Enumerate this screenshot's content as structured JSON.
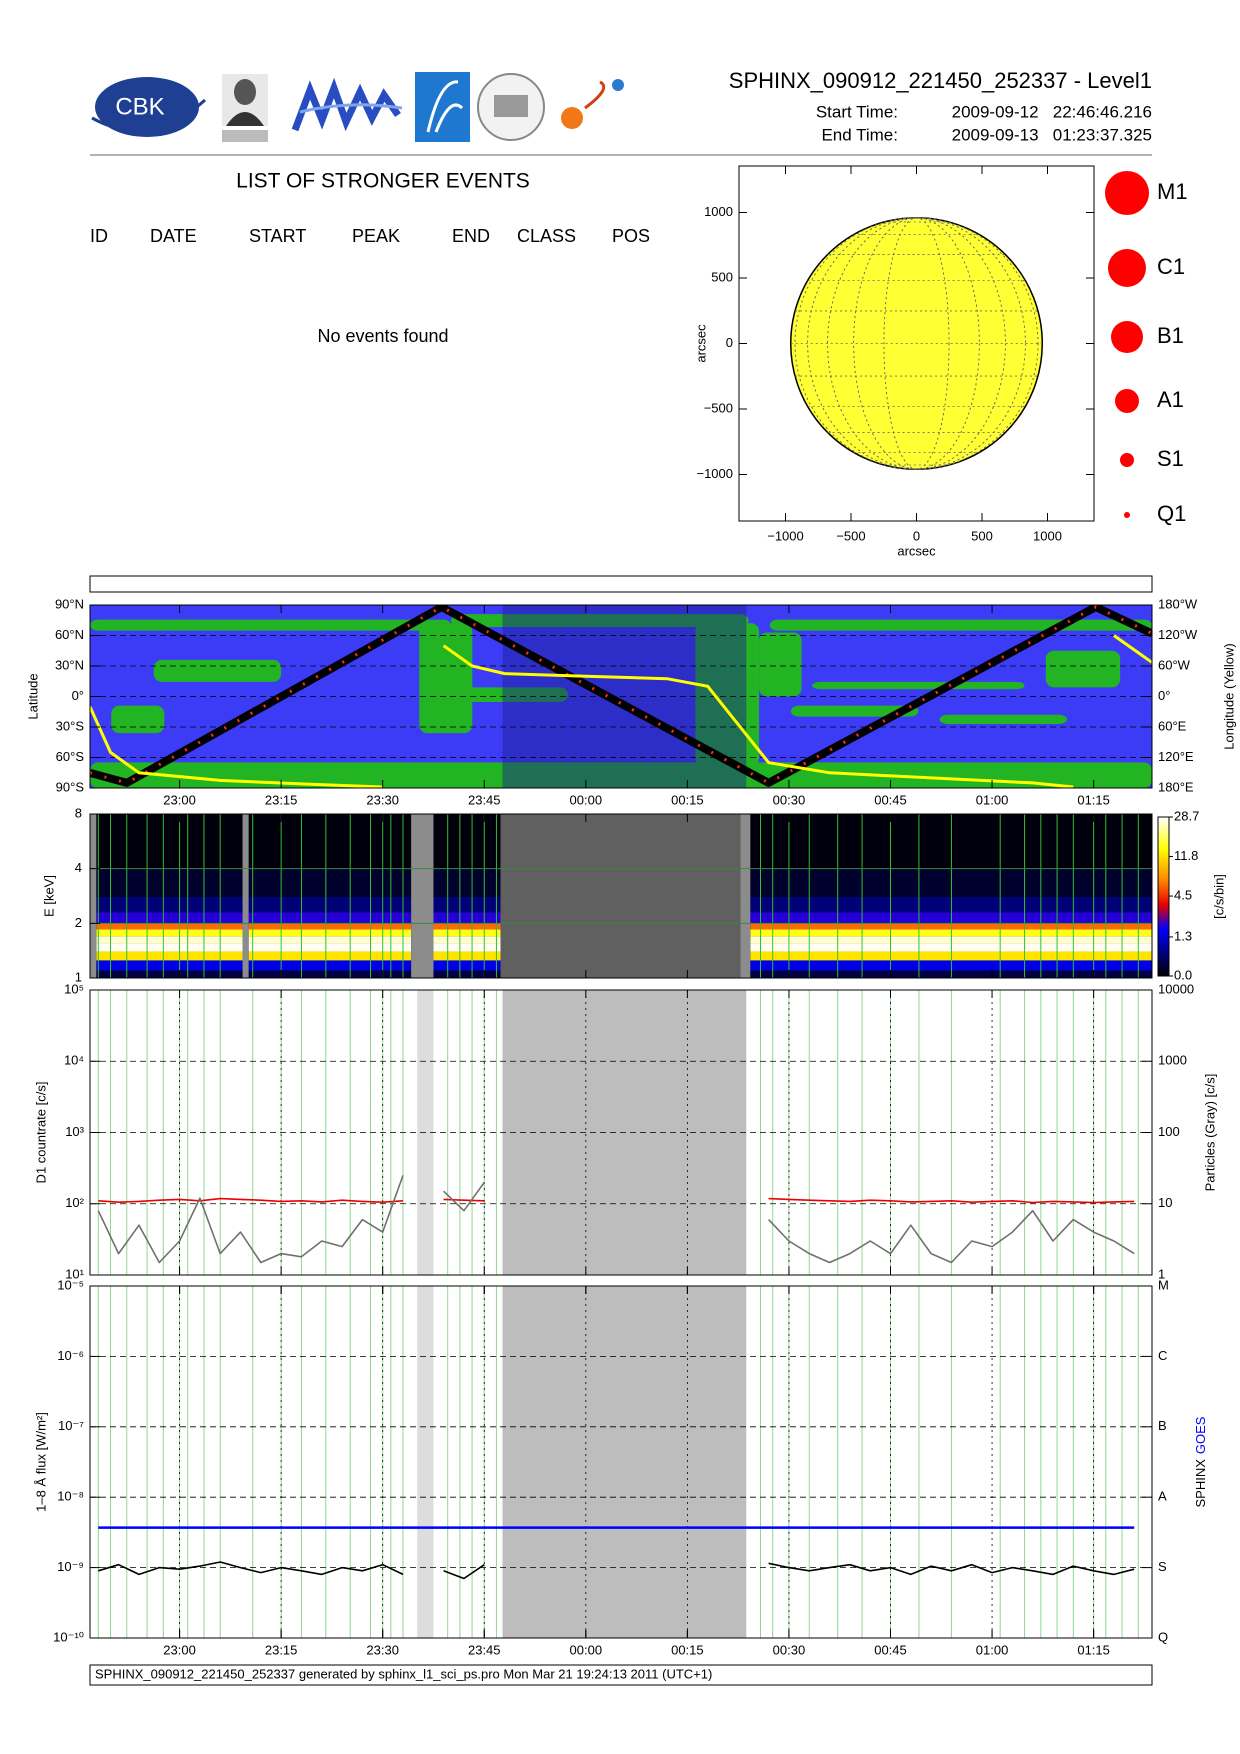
{
  "header": {
    "logo_text": "CBK",
    "title": "SPHINX_090912_221450_252337 - Level1",
    "start_label": "Start Time:",
    "start_value": "2009-09-12   22:46:46.216",
    "end_label": "End Time:",
    "end_value": "2009-09-13   01:23:37.325"
  },
  "events": {
    "title": "LIST OF STRONGER EVENTS",
    "columns": [
      "ID",
      "DATE",
      "START",
      "PEAK",
      "END",
      "CLASS",
      "POS"
    ],
    "message": "No events found"
  },
  "chart_data": [
    {
      "type": "disk",
      "xlabel": "arcsec",
      "ylabel": "arcsec",
      "xlim": [
        -1355,
        1355
      ],
      "ylim": [
        -1355,
        1355
      ],
      "xticks": [
        {
          "value": -1000,
          "label": "−1000"
        },
        {
          "value": -500,
          "label": "−500"
        },
        0,
        500,
        1000
      ],
      "yticks": [
        {
          "value": -1000,
          "label": "−1000"
        },
        {
          "value": -500,
          "label": "−500"
        },
        0,
        500,
        1000
      ],
      "sun_radius": 960,
      "sun_color": "#ffff33",
      "marker_color": "#ff0000",
      "classes": [
        "M1",
        "C1",
        "B1",
        "A1",
        "S1",
        "Q1"
      ]
    },
    {
      "type": "map",
      "ylabel": "Latitude",
      "y2label": "Longitude (Yellow)",
      "xlim": [
        22.7795,
        25.3937
      ],
      "xticks": [
        {
          "value": 23,
          "label": "23:00"
        },
        {
          "value": 23.25,
          "label": "23:15"
        },
        {
          "value": 23.5,
          "label": "23:30"
        },
        {
          "value": 23.75,
          "label": "23:45"
        },
        {
          "value": 24,
          "label": "00:00"
        },
        {
          "value": 24.25,
          "label": "00:15"
        },
        {
          "value": 24.5,
          "label": "00:30"
        },
        {
          "value": 24.75,
          "label": "00:45"
        },
        {
          "value": 25,
          "label": "01:00"
        },
        {
          "value": 25.25,
          "label": "01:15"
        }
      ],
      "ylim": [
        -90,
        90
      ],
      "yticks": [
        {
          "value": -90,
          "label": "90°S"
        },
        {
          "value": -60,
          "label": "60°S"
        },
        {
          "value": -30,
          "label": "30°S"
        },
        {
          "value": 0,
          "label": "0°"
        },
        {
          "value": 30,
          "label": "30°N"
        },
        {
          "value": 60,
          "label": "60°N"
        },
        {
          "value": 90,
          "label": "90°N"
        }
      ],
      "y2lim": [
        180,
        -180
      ],
      "y2ticks": [
        {
          "value": -180,
          "label": "180°W"
        },
        {
          "value": -120,
          "label": "120°W"
        },
        {
          "value": -60,
          "label": "60°W"
        },
        {
          "value": 0,
          "label": "0°"
        },
        {
          "value": 60,
          "label": "60°E"
        },
        {
          "value": 120,
          "label": "120°E"
        },
        {
          "value": 180,
          "label": "180°E"
        }
      ],
      "series": [
        {
          "color": "#000000",
          "x": [
            22.7795,
            22.87,
            23.645,
            24.45,
            25.255,
            25.3937
          ],
          "values": [
            -75,
            -85,
            88,
            -85,
            88,
            62
          ]
        },
        {
          "color": "#ffff00",
          "axis": "y2",
          "x": [
            22.7795,
            22.83,
            22.9,
            23.1,
            23.3,
            23.5,
            23.55,
            23.65,
            23.72,
            23.8,
            24.0,
            24.2,
            24.3,
            24.38,
            24.45,
            24.6,
            24.9,
            25.1,
            25.2,
            25.25,
            25.3,
            25.3937
          ],
          "values": [
            20,
            110,
            150,
            165,
            172,
            178,
            null,
            -100,
            -60,
            -45,
            -40,
            -35,
            -20,
            60,
            130,
            150,
            162,
            170,
            178,
            null,
            -120,
            -67
          ]
        }
      ]
    },
    {
      "type": "heatmap",
      "ylabel": "E [keV]",
      "colorbar_label": "[c/s/bin]",
      "log_y": true,
      "xlim": [
        22.7795,
        25.3937
      ],
      "ylim": [
        1,
        8
      ],
      "yticks": [
        1,
        2,
        4,
        8
      ],
      "clim": [
        0,
        28.7
      ],
      "cticks": [
        {
          "value": 0,
          "label": "0.0"
        },
        1.3,
        4.5,
        11.8,
        28.7
      ],
      "intervals": [
        [
          22.795,
          23.155
        ],
        [
          23.17,
          23.57
        ],
        [
          23.625,
          23.79
        ],
        [
          24.405,
          25.3937
        ]
      ],
      "gaps": [
        [
          22.7795,
          22.795
        ],
        [
          23.155,
          23.17
        ],
        [
          23.57,
          23.625
        ],
        [
          24.38,
          24.405
        ]
      ],
      "eclipse": [
        23.79,
        24.38
      ],
      "energy": [
        1,
        1.1,
        1.25,
        1.4,
        1.55,
        1.7,
        1.85,
        2.0,
        2.3,
        2.8,
        4,
        8
      ],
      "counts": [
        0.3,
        1.5,
        12,
        28,
        25,
        15,
        6,
        2,
        0.6,
        0.2,
        0.05
      ]
    },
    {
      "type": "line",
      "ylabel": "D1 countrate [c/s]",
      "y2label": "Particles (Gray) [c/s]",
      "log_y": true,
      "xlim": [
        22.7795,
        25.3937
      ],
      "ylim": [
        10,
        100000
      ],
      "yticks": [
        {
          "value": 10,
          "label": "10¹"
        },
        {
          "value": 100,
          "label": "10²"
        },
        {
          "value": 1000,
          "label": "10³"
        },
        {
          "value": 10000,
          "label": "10⁴"
        },
        {
          "value": 100000,
          "label": "10⁵"
        }
      ],
      "y2lim": [
        1,
        10000
      ],
      "y2ticks": [
        1,
        10,
        100,
        1000,
        10000
      ],
      "gaps": [
        [
          23.585,
          23.625
        ]
      ],
      "eclipse": [
        23.795,
        24.395
      ],
      "flags": [
        22.8,
        22.83,
        22.87,
        22.92,
        22.96,
        23.0,
        23.02,
        23.06,
        23.1,
        23.18,
        23.25,
        23.3,
        23.36,
        23.42,
        23.47,
        23.5,
        23.52,
        23.55,
        23.66,
        23.69,
        23.72,
        23.75,
        23.78,
        24.43,
        24.46,
        24.5,
        24.55,
        24.62,
        24.68,
        24.75,
        24.82,
        24.9,
        25.02,
        25.08,
        25.12,
        25.16,
        25.2,
        25.25,
        25.28,
        25.32,
        25.36
      ],
      "x": [
        22.8,
        22.85,
        22.9,
        22.95,
        23,
        23.05,
        23.1,
        23.15,
        23.2,
        23.25,
        23.3,
        23.35,
        23.4,
        23.45,
        23.5,
        23.55,
        23.6,
        23.65,
        23.7,
        23.75,
        23.8,
        23.85,
        23.9,
        23.95,
        24,
        24.05,
        24.1,
        24.15,
        24.2,
        24.25,
        24.3,
        24.35,
        24.4,
        24.45,
        24.5,
        24.55,
        24.6,
        24.65,
        24.7,
        24.75,
        24.8,
        24.85,
        24.9,
        24.95,
        25,
        25.05,
        25.1,
        25.15,
        25.2,
        25.25,
        25.3,
        25.35
      ],
      "series": [
        {
          "color": "#ee0000",
          "values": [
            110,
            105,
            108,
            112,
            115,
            110,
            118,
            115,
            112,
            108,
            110,
            106,
            112,
            108,
            105,
            110,
            null,
            115,
            112,
            110,
            null,
            null,
            null,
            null,
            null,
            null,
            null,
            null,
            null,
            null,
            null,
            null,
            null,
            118,
            115,
            112,
            110,
            108,
            112,
            110,
            106,
            108,
            110,
            105,
            108,
            110,
            104,
            108,
            106,
            104,
            106,
            108
          ]
        },
        {
          "color": "#707070",
          "axis": "y2",
          "values": [
            8,
            2,
            5,
            1.5,
            3,
            12,
            2,
            4,
            1.5,
            2,
            1.8,
            3,
            2.5,
            6,
            4,
            25,
            null,
            15,
            8,
            20,
            null,
            null,
            null,
            null,
            null,
            null,
            null,
            null,
            null,
            null,
            null,
            null,
            null,
            6,
            3,
            2,
            1.5,
            2,
            3,
            2,
            5,
            2,
            1.5,
            3,
            2.5,
            4,
            8,
            3,
            6,
            4,
            3,
            2
          ]
        }
      ]
    },
    {
      "type": "line",
      "ylabel": "1–8 Å flux [W/m²]",
      "log_y": true,
      "xlim": [
        22.7795,
        25.3937
      ],
      "xticks": [
        {
          "value": 23,
          "label": "23:00"
        },
        {
          "value": 23.25,
          "label": "23:15"
        },
        {
          "value": 23.5,
          "label": "23:30"
        },
        {
          "value": 23.75,
          "label": "23:45"
        },
        {
          "value": 24,
          "label": "00:00"
        },
        {
          "value": 24.25,
          "label": "00:15"
        },
        {
          "value": 24.5,
          "label": "00:30"
        },
        {
          "value": 24.75,
          "label": "00:45"
        },
        {
          "value": 25,
          "label": "01:00"
        },
        {
          "value": 25.25,
          "label": "01:15"
        }
      ],
      "ylim": [
        1e-10,
        1e-05
      ],
      "yticks": [
        {
          "value": 1e-10,
          "label": "10⁻¹⁰"
        },
        {
          "value": 1e-09,
          "label": "10⁻⁹"
        },
        {
          "value": 1e-08,
          "label": "10⁻⁸"
        },
        {
          "value": 1e-07,
          "label": "10⁻⁷"
        },
        {
          "value": 1e-06,
          "label": "10⁻⁶"
        },
        {
          "value": 1e-05,
          "label": "10⁻⁵"
        }
      ],
      "y2lim": [
        1e-10,
        1e-05
      ],
      "y2ticks": [
        {
          "value": 1e-10,
          "label": "Q"
        },
        {
          "value": 1e-09,
          "label": "S"
        },
        {
          "value": 1e-08,
          "label": "A"
        },
        {
          "value": 1e-07,
          "label": "B"
        },
        {
          "value": 1e-06,
          "label": "C"
        },
        {
          "value": 1e-05,
          "label": "M"
        }
      ],
      "gaps": [
        [
          23.585,
          23.625
        ]
      ],
      "eclipse": [
        23.795,
        24.395
      ],
      "x": [
        22.8,
        22.85,
        22.9,
        22.95,
        23,
        23.05,
        23.1,
        23.15,
        23.2,
        23.25,
        23.3,
        23.35,
        23.4,
        23.45,
        23.5,
        23.55,
        23.6,
        23.65,
        23.7,
        23.75,
        23.8,
        23.85,
        23.9,
        23.95,
        24,
        24.05,
        24.1,
        24.15,
        24.2,
        24.25,
        24.3,
        24.35,
        24.4,
        24.45,
        24.5,
        24.55,
        24.6,
        24.65,
        24.7,
        24.75,
        24.8,
        24.85,
        24.9,
        24.95,
        25,
        25.05,
        25.1,
        25.15,
        25.2,
        25.25,
        25.3,
        25.35
      ],
      "series": [
        {
          "name": "SPHINX",
          "color": "#000000",
          "values": [
            9e-10,
            1.1e-09,
            8e-10,
            1e-09,
            9.5e-10,
            1.05e-09,
            1.2e-09,
            1e-09,
            8.5e-10,
            1e-09,
            9e-10,
            8e-10,
            1e-09,
            9e-10,
            1.1e-09,
            8e-10,
            null,
            9e-10,
            7e-10,
            1.1e-09,
            null,
            null,
            null,
            null,
            null,
            null,
            null,
            null,
            null,
            null,
            null,
            null,
            null,
            1.15e-09,
            1e-09,
            9e-10,
            1e-09,
            1.1e-09,
            9e-10,
            1e-09,
            8e-10,
            1.05e-09,
            9e-10,
            1.1e-09,
            8.5e-10,
            1e-09,
            9e-10,
            8e-10,
            1.05e-09,
            9e-10,
            8e-10,
            9.5e-10
          ]
        },
        {
          "name": "GOES",
          "color": "#0000ff",
          "values": [
            3.7e-09,
            3.7e-09,
            3.7e-09,
            3.7e-09,
            3.7e-09,
            3.7e-09,
            3.7e-09,
            3.7e-09,
            3.7e-09,
            3.7e-09,
            3.7e-09,
            3.7e-09,
            3.7e-09,
            3.7e-09,
            3.7e-09,
            3.7e-09,
            3.7e-09,
            3.7e-09,
            3.7e-09,
            3.7e-09,
            3.7e-09,
            3.7e-09,
            3.7e-09,
            3.7e-09,
            3.7e-09,
            3.7e-09,
            3.7e-09,
            3.7e-09,
            3.7e-09,
            3.7e-09,
            3.7e-09,
            3.7e-09,
            3.7e-09,
            3.7e-09,
            3.7e-09,
            3.7e-09,
            3.7e-09,
            3.7e-09,
            3.7e-09,
            3.7e-09,
            3.7e-09,
            3.7e-09,
            3.7e-09,
            3.7e-09,
            3.7e-09,
            3.7e-09,
            3.7e-09,
            3.7e-09,
            3.7e-09,
            3.7e-09,
            3.7e-09,
            3.7e-09
          ]
        }
      ]
    }
  ],
  "footer": "SPHINX_090912_221450_252337 generated by sphinx_l1_sci_ps.pro Mon Mar 21 19:24:13 2011 (UTC+1)"
}
